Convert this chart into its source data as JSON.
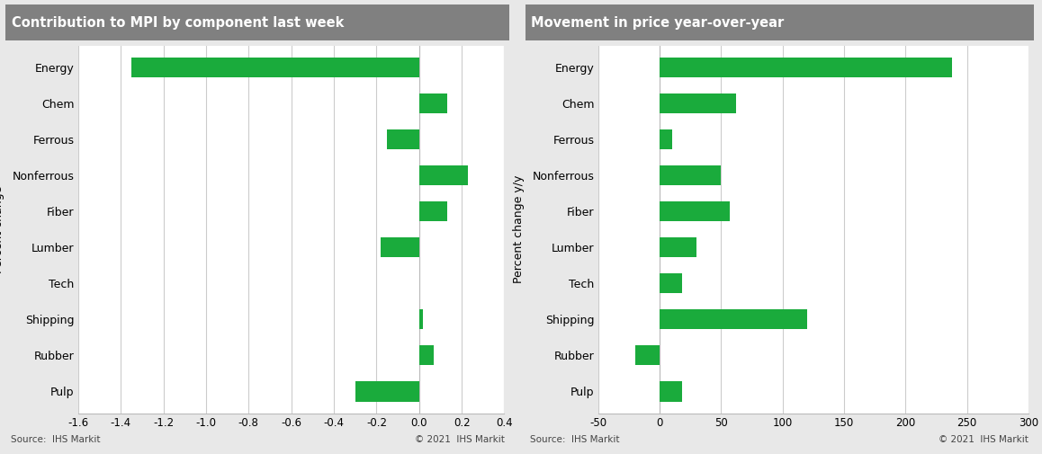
{
  "categories": [
    "Energy",
    "Chem",
    "Ferrous",
    "Nonferrous",
    "Fiber",
    "Lumber",
    "Tech",
    "Shipping",
    "Rubber",
    "Pulp"
  ],
  "left_values": [
    -1.35,
    0.13,
    -0.15,
    0.23,
    0.13,
    -0.18,
    0.0,
    0.02,
    0.07,
    -0.3
  ],
  "right_values": [
    238,
    62,
    10,
    50,
    57,
    30,
    18,
    120,
    -20,
    18
  ],
  "left_title": "Contribution to MPI by component last week",
  "right_title": "Movement in price year-over-year",
  "left_ylabel": "Percent change",
  "right_ylabel": "Percent change y/y",
  "left_xlim": [
    -1.6,
    0.4
  ],
  "right_xlim": [
    -50,
    300
  ],
  "left_xticks": [
    -1.6,
    -1.4,
    -1.2,
    -1.0,
    -0.8,
    -0.6,
    -0.4,
    -0.2,
    0.0,
    0.2,
    0.4
  ],
  "right_xticks": [
    -50,
    0,
    50,
    100,
    150,
    200,
    250,
    300
  ],
  "bar_color": "#1aab3c",
  "bg_color": "#e8e8e8",
  "title_bg_color": "#808080",
  "title_text_color": "#ffffff",
  "source_text": "Source:  IHS Markit",
  "copyright_text": "© 2021  IHS Markit",
  "plot_bg_color": "#ffffff",
  "grid_color": "#cccccc",
  "border_color": "#bbbbbb"
}
